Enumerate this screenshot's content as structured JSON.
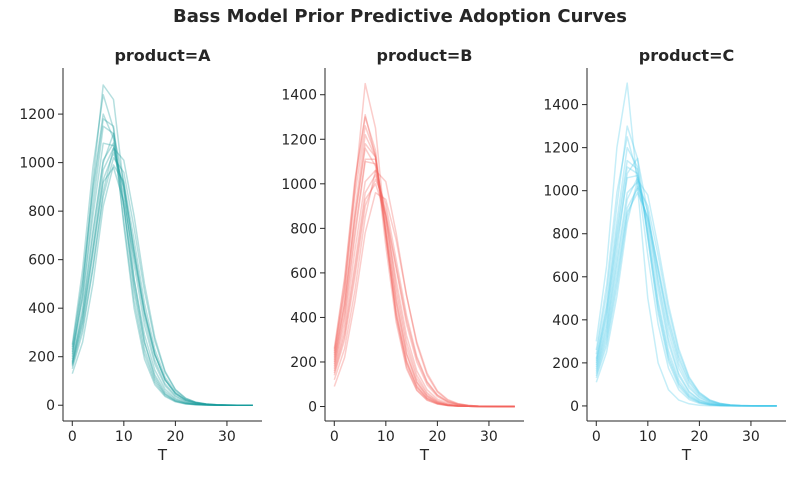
{
  "figure": {
    "title": "Bass Model Prior Predictive Adoption Curves"
  },
  "chart_data": [
    {
      "type": "line",
      "title": "product=A",
      "xlabel": "T",
      "ylabel": "",
      "color": "#1a9a9a",
      "xlim": [
        -1.8,
        36.8
      ],
      "ylim": [
        -65,
        1390
      ],
      "xticks": [
        0,
        10,
        20,
        30
      ],
      "yticks": [
        0,
        200,
        400,
        600,
        800,
        1000,
        1200
      ],
      "grid": false,
      "x": [
        0,
        2,
        4,
        6,
        8,
        10,
        12,
        14,
        16,
        18,
        20,
        22,
        24,
        26,
        28,
        30,
        32,
        35
      ],
      "series": [
        {
          "values": [
            180,
            370,
            650,
            970,
            1060,
            900,
            640,
            390,
            210,
            105,
            50,
            22,
            10,
            4,
            2,
            1,
            0,
            0
          ]
        },
        {
          "values": [
            200,
            480,
            920,
            1320,
            1260,
            900,
            520,
            260,
            115,
            48,
            20,
            8,
            3,
            1,
            0,
            0,
            0,
            0
          ]
        },
        {
          "values": [
            160,
            320,
            570,
            880,
            1060,
            1010,
            780,
            500,
            280,
            140,
            65,
            29,
            12,
            5,
            2,
            1,
            0,
            0
          ]
        },
        {
          "values": [
            220,
            450,
            820,
            1150,
            1120,
            820,
            490,
            260,
            125,
            56,
            24,
            10,
            4,
            2,
            1,
            0,
            0,
            0
          ]
        },
        {
          "values": [
            130,
            260,
            500,
            820,
            990,
            920,
            680,
            420,
            230,
            115,
            55,
            25,
            11,
            5,
            2,
            1,
            0,
            0
          ]
        },
        {
          "values": [
            240,
            520,
            900,
            1200,
            1100,
            760,
            430,
            210,
            95,
            40,
            16,
            6,
            2,
            1,
            0,
            0,
            0,
            0
          ]
        },
        {
          "values": [
            190,
            400,
            720,
            1010,
            1080,
            870,
            580,
            330,
            170,
            80,
            35,
            15,
            6,
            2,
            1,
            0,
            0,
            0
          ]
        },
        {
          "values": [
            170,
            350,
            640,
            920,
            980,
            840,
            610,
            380,
            210,
            105,
            48,
            21,
            9,
            4,
            1,
            0,
            0,
            0
          ]
        },
        {
          "values": [
            250,
            560,
            980,
            1280,
            1140,
            740,
            400,
            190,
            85,
            36,
            14,
            5,
            2,
            1,
            0,
            0,
            0,
            0
          ]
        },
        {
          "values": [
            150,
            300,
            560,
            860,
            1020,
            960,
            730,
            470,
            265,
            135,
            63,
            28,
            12,
            5,
            2,
            1,
            0,
            0
          ]
        },
        {
          "values": [
            210,
            440,
            780,
            1080,
            1070,
            820,
            520,
            290,
            145,
            66,
            28,
            11,
            4,
            2,
            1,
            0,
            0,
            0
          ]
        },
        {
          "values": [
            175,
            380,
            700,
            1000,
            1120,
            920,
            620,
            360,
            185,
            88,
            40,
            17,
            7,
            3,
            1,
            0,
            0,
            0
          ]
        },
        {
          "values": [
            230,
            500,
            870,
            1180,
            1150,
            820,
            470,
            230,
            105,
            45,
            18,
            7,
            3,
            1,
            0,
            0,
            0,
            0
          ]
        },
        {
          "values": [
            165,
            340,
            620,
            930,
            1040,
            900,
            640,
            385,
            210,
            104,
            48,
            21,
            9,
            4,
            1,
            0,
            0,
            0
          ]
        }
      ]
    },
    {
      "type": "line",
      "title": "product=B",
      "xlabel": "T",
      "ylabel": "",
      "color": "#f2625c",
      "xlim": [
        -1.8,
        36.8
      ],
      "ylim": [
        -65,
        1520
      ],
      "xticks": [
        0,
        10,
        20,
        30
      ],
      "yticks": [
        0,
        200,
        400,
        600,
        800,
        1000,
        1200,
        1400
      ],
      "grid": false,
      "x": [
        0,
        2,
        4,
        6,
        8,
        10,
        12,
        14,
        16,
        18,
        20,
        22,
        24,
        26,
        28,
        30,
        32,
        35
      ],
      "series": [
        {
          "values": [
            230,
            520,
            980,
            1450,
            1250,
            780,
            400,
            180,
            75,
            30,
            12,
            5,
            2,
            1,
            0,
            0,
            0,
            0
          ]
        },
        {
          "values": [
            180,
            400,
            760,
            1100,
            1090,
            860,
            540,
            290,
            140,
            62,
            26,
            10,
            4,
            2,
            1,
            0,
            0,
            0
          ]
        },
        {
          "values": [
            250,
            560,
            1000,
            1300,
            1150,
            760,
            420,
            200,
            88,
            36,
            14,
            5,
            2,
            1,
            0,
            0,
            0,
            0
          ]
        },
        {
          "values": [
            120,
            260,
            520,
            850,
            1060,
            1010,
            780,
            500,
            280,
            140,
            65,
            28,
            12,
            5,
            2,
            1,
            0,
            0
          ]
        },
        {
          "values": [
            200,
            450,
            840,
            1180,
            1120,
            810,
            480,
            240,
            110,
            48,
            19,
            7,
            3,
            1,
            0,
            0,
            0,
            0
          ]
        },
        {
          "values": [
            160,
            340,
            640,
            960,
            1040,
            880,
            620,
            370,
            200,
            98,
            45,
            19,
            8,
            3,
            1,
            0,
            0,
            0
          ]
        },
        {
          "values": [
            220,
            480,
            880,
            1220,
            1120,
            780,
            440,
            210,
            95,
            40,
            16,
            6,
            2,
            1,
            0,
            0,
            0,
            0
          ]
        },
        {
          "values": [
            90,
            220,
            470,
            780,
            960,
            930,
            750,
            500,
            290,
            150,
            70,
            31,
            13,
            5,
            2,
            1,
            0,
            0
          ]
        },
        {
          "values": [
            190,
            420,
            790,
            1110,
            1110,
            840,
            510,
            265,
            125,
            55,
            23,
            9,
            3,
            1,
            0,
            0,
            0,
            0
          ]
        },
        {
          "values": [
            260,
            580,
            1020,
            1310,
            1120,
            720,
            380,
            170,
            72,
            28,
            11,
            4,
            2,
            1,
            0,
            0,
            0,
            0
          ]
        },
        {
          "values": [
            140,
            300,
            580,
            900,
            1020,
            910,
            660,
            410,
            225,
            112,
            52,
            23,
            10,
            4,
            2,
            1,
            0,
            0
          ]
        },
        {
          "values": [
            210,
            460,
            850,
            1160,
            1080,
            790,
            470,
            235,
            108,
            46,
            19,
            7,
            3,
            1,
            0,
            0,
            0,
            0
          ]
        },
        {
          "values": [
            170,
            370,
            700,
            1010,
            1060,
            850,
            570,
            320,
            160,
            75,
            33,
            14,
            6,
            2,
            1,
            0,
            0,
            0
          ]
        },
        {
          "values": [
            240,
            530,
            950,
            1260,
            1130,
            760,
            410,
            195,
            85,
            35,
            14,
            5,
            2,
            1,
            0,
            0,
            0,
            0
          ]
        },
        {
          "values": [
            150,
            320,
            610,
            930,
            1000,
            860,
            630,
            390,
            215,
            108,
            50,
            22,
            9,
            4,
            1,
            0,
            0,
            0
          ]
        }
      ]
    },
    {
      "type": "line",
      "title": "product=C",
      "xlabel": "T",
      "ylabel": "",
      "color": "#4fc9e8",
      "xlim": [
        -1.8,
        36.8
      ],
      "ylim": [
        -70,
        1570
      ],
      "xticks": [
        0,
        10,
        20,
        30
      ],
      "yticks": [
        0,
        200,
        400,
        600,
        800,
        1000,
        1200,
        1400
      ],
      "grid": false,
      "x": [
        0,
        2,
        4,
        6,
        8,
        10,
        12,
        14,
        16,
        18,
        20,
        22,
        24,
        26,
        28,
        30,
        32,
        35
      ],
      "series": [
        {
          "values": [
            300,
            650,
            1200,
            1500,
            1020,
            500,
            200,
            75,
            27,
            10,
            3,
            1,
            0,
            0,
            0,
            0,
            0,
            0
          ]
        },
        {
          "values": [
            180,
            380,
            720,
            1080,
            1150,
            900,
            570,
            310,
            150,
            68,
            29,
            12,
            5,
            2,
            1,
            0,
            0,
            0
          ]
        },
        {
          "values": [
            110,
            250,
            510,
            850,
            1050,
            980,
            740,
            470,
            265,
            135,
            63,
            28,
            12,
            5,
            2,
            1,
            0,
            0
          ]
        },
        {
          "values": [
            240,
            520,
            930,
            1300,
            1150,
            780,
            430,
            205,
            90,
            37,
            15,
            6,
            2,
            1,
            0,
            0,
            0,
            0
          ]
        },
        {
          "values": [
            200,
            430,
            790,
            1110,
            1080,
            810,
            490,
            255,
            120,
            53,
            22,
            9,
            3,
            1,
            0,
            0,
            0,
            0
          ]
        },
        {
          "values": [
            150,
            320,
            610,
            920,
            1010,
            870,
            630,
            390,
            215,
            108,
            50,
            22,
            9,
            4,
            1,
            0,
            0,
            0
          ]
        },
        {
          "values": [
            220,
            470,
            860,
            1200,
            1110,
            780,
            450,
            220,
            100,
            42,
            17,
            6,
            2,
            1,
            0,
            0,
            0,
            0
          ]
        },
        {
          "values": [
            130,
            280,
            550,
            880,
            1020,
            930,
            700,
            445,
            250,
            128,
            60,
            27,
            12,
            5,
            2,
            1,
            0,
            0
          ]
        },
        {
          "values": [
            190,
            410,
            760,
            1060,
            1070,
            840,
            540,
            290,
            140,
            63,
            27,
            11,
            4,
            2,
            1,
            0,
            0,
            0
          ]
        },
        {
          "values": [
            260,
            560,
            990,
            1250,
            1070,
            700,
            380,
            175,
            75,
            30,
            12,
            4,
            2,
            1,
            0,
            0,
            0,
            0
          ]
        },
        {
          "values": [
            170,
            360,
            680,
            990,
            1040,
            860,
            590,
            340,
            175,
            84,
            38,
            16,
            7,
            3,
            1,
            0,
            0,
            0
          ]
        },
        {
          "values": [
            140,
            300,
            580,
            900,
            990,
            880,
            650,
            410,
            230,
            117,
            55,
            24,
            10,
            4,
            2,
            1,
            0,
            0
          ]
        },
        {
          "values": [
            210,
            450,
            820,
            1140,
            1100,
            800,
            470,
            235,
            108,
            46,
            19,
            7,
            3,
            1,
            0,
            0,
            0,
            0
          ]
        },
        {
          "values": [
            160,
            340,
            650,
            960,
            1060,
            900,
            630,
            370,
            195,
            94,
            43,
            18,
            8,
            3,
            1,
            0,
            0,
            0
          ]
        }
      ]
    }
  ]
}
